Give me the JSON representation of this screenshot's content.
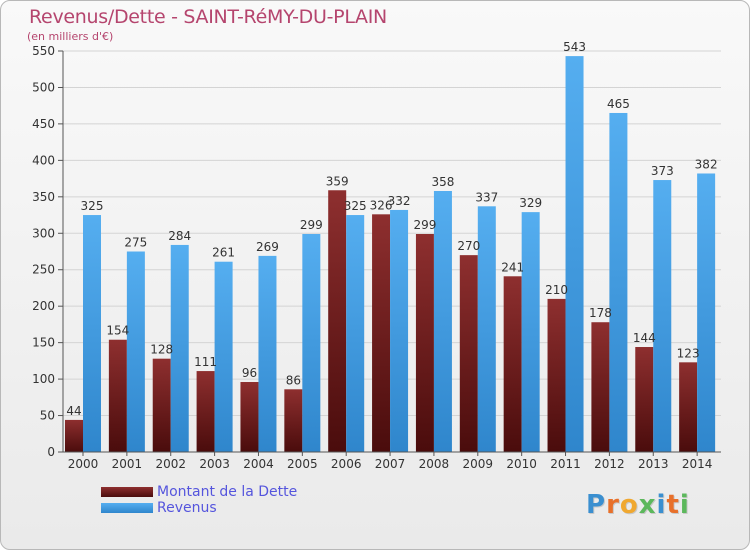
{
  "title": "Revenus/Dette - SAINT-RéMY-DU-PLAIN",
  "subtitle": "(en milliers d'€)",
  "logo": {
    "letters": [
      "P",
      "r",
      "o",
      "x",
      "i",
      "t",
      "i"
    ],
    "colors": [
      "#3a8fd0",
      "#e8702a",
      "#f0a830",
      "#5cb85c",
      "#3a8fd0",
      "#e8702a",
      "#5cb85c"
    ]
  },
  "chart_data": {
    "type": "bar",
    "title": "Revenus/Dette - SAINT-RéMY-DU-PLAIN",
    "ylabel": "(en milliers d'€)",
    "categories": [
      "2000",
      "2001",
      "2002",
      "2003",
      "2004",
      "2005",
      "2006",
      "2007",
      "2008",
      "2009",
      "2010",
      "2011",
      "2012",
      "2013",
      "2014"
    ],
    "series": [
      {
        "name": "Montant de la Dette",
        "color": "#8b2c2c",
        "values": [
          44,
          154,
          128,
          111,
          96,
          86,
          359,
          326,
          299,
          270,
          241,
          210,
          178,
          144,
          123
        ]
      },
      {
        "name": "Revenus",
        "color": "#4aa3e8",
        "values": [
          325,
          275,
          284,
          261,
          269,
          299,
          325,
          332,
          358,
          337,
          329,
          543,
          465,
          373,
          382
        ]
      }
    ],
    "ylim": [
      0,
      550
    ],
    "yticks": [
      0,
      50,
      100,
      150,
      200,
      250,
      300,
      350,
      400,
      450,
      500,
      550
    ],
    "grid": true,
    "legend_position": "bottom-left"
  }
}
